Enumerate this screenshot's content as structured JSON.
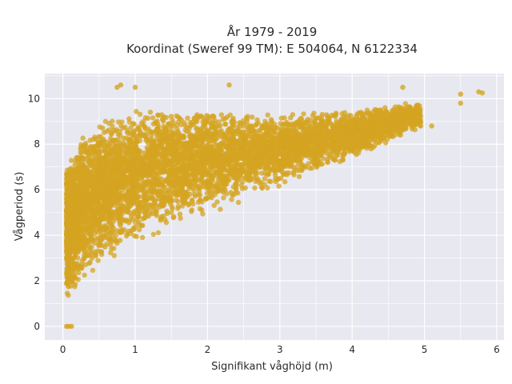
{
  "chart_data": {
    "type": "scatter",
    "title_line1": "År 1979 - 2019",
    "title_line2": "Koordinat (Sweref 99 TM): E 504064, N 6122334",
    "xlabel": "Signifikant våghöjd (m)",
    "ylabel": "Vågperiod (s)",
    "xlim": [
      -0.25,
      6.1
    ],
    "ylim": [
      -0.6,
      11.1
    ],
    "xticks": [
      0,
      1,
      2,
      3,
      4,
      5,
      6
    ],
    "yticks": [
      0,
      2,
      4,
      6,
      8,
      10
    ],
    "grid": true,
    "marker_color": "#D4A421",
    "plot_bg": "#E8E8F0",
    "grid_color": "#FFFFFF",
    "point_count": 6000,
    "envelope": {
      "x": [
        0.05,
        0.3,
        0.5,
        1.0,
        1.5,
        2.0,
        2.5,
        3.0,
        3.5,
        4.0,
        4.5,
        5.0
      ],
      "lower": [
        1.0,
        2.0,
        2.6,
        3.6,
        4.3,
        4.9,
        5.5,
        6.1,
        6.7,
        7.3,
        8.0,
        8.8
      ],
      "upper": [
        7.0,
        8.5,
        9.0,
        9.5,
        9.6,
        9.5,
        9.4,
        9.3,
        9.4,
        9.5,
        9.7,
        9.9
      ]
    },
    "outliers": [
      [
        0.05,
        0.0
      ],
      [
        0.08,
        0.0
      ],
      [
        0.12,
        0.0
      ],
      [
        5.5,
        10.2
      ],
      [
        5.5,
        9.8
      ],
      [
        5.75,
        10.3
      ],
      [
        5.8,
        10.25
      ],
      [
        4.7,
        10.5
      ],
      [
        5.1,
        8.8
      ],
      [
        0.75,
        10.5
      ],
      [
        0.8,
        10.6
      ],
      [
        2.3,
        10.6
      ],
      [
        1.0,
        10.5
      ]
    ]
  }
}
